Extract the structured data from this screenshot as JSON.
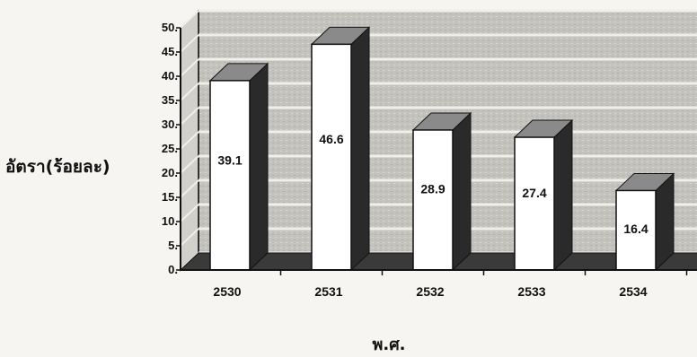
{
  "chart_data": {
    "type": "bar",
    "categories": [
      "2530",
      "2531",
      "2532",
      "2533",
      "2534"
    ],
    "values": [
      39.1,
      46.6,
      28.9,
      27.4,
      16.4
    ],
    "data_labels": [
      "39.1",
      "46.6",
      "28.9",
      "27.4",
      "16.4"
    ],
    "xlabel": "พ.ศ.",
    "ylabel": "อัตรา(ร้อยละ)",
    "ylim": [
      0,
      50
    ],
    "yticks": [
      "0.",
      "5.",
      "10.",
      "15.",
      "20.",
      "25.",
      "30.",
      "35.",
      "40.",
      "45.",
      "50."
    ],
    "grid": true,
    "three_d": true,
    "colors": {
      "bar_front": "#ffffff",
      "bar_side": "#2a2a2a",
      "bar_top": "#8a8a8a",
      "wall": "#c4c2bc",
      "wall_grid": "#f0efea",
      "floor": "#3a3a3a"
    }
  }
}
